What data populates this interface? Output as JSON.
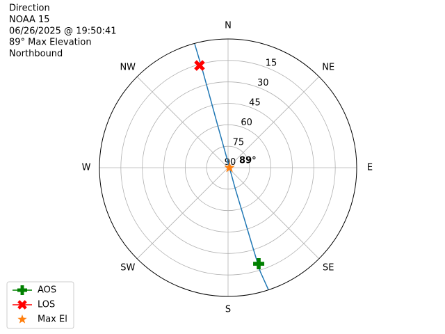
{
  "chart_data": {
    "type": "polar",
    "header_lines": [
      "Direction",
      "NOAA 15",
      "06/26/2025 @ 19:50:41",
      "89° Max Elevation",
      "Northbound"
    ],
    "rlim": [
      90,
      0
    ],
    "rticks": [
      15,
      30,
      45,
      60,
      75,
      90
    ],
    "thetaticks": [
      {
        "value": 0,
        "label": "N"
      },
      {
        "value": 45,
        "label": "NE"
      },
      {
        "value": 90,
        "label": "E"
      },
      {
        "value": 135,
        "label": "SE"
      },
      {
        "value": 180,
        "label": "S"
      },
      {
        "value": 225,
        "label": "SW"
      },
      {
        "value": 270,
        "label": "W"
      },
      {
        "value": 315,
        "label": "NW"
      }
    ],
    "grid": true,
    "track": {
      "color": "#1f77b4",
      "azimuth": [
        344.9,
        345.3,
        345.6,
        346.2,
        348.3,
        90,
        161,
        162.3,
        162.7,
        162.8,
        161.7
      ],
      "elevation": [
        0.4,
        19.1,
        39.3,
        59.4,
        75.6,
        89,
        75.1,
        54.8,
        34.4,
        14.1,
        0.3
      ]
    },
    "series": [
      {
        "name": "AOS",
        "color": "#008000",
        "marker": "plus",
        "azimuth": [
          162.3
        ],
        "elevation": [
          19.5
        ]
      },
      {
        "name": "LOS",
        "color": "#ff0000",
        "marker": "x",
        "azimuth": [
          344.4
        ],
        "elevation": [
          15.8
        ]
      },
      {
        "name": "Max El",
        "color": "#ff7f0e",
        "marker": "star",
        "azimuth": [
          90
        ],
        "elevation": [
          89
        ]
      }
    ],
    "max_el_label": "89°",
    "legend": "lower left"
  }
}
